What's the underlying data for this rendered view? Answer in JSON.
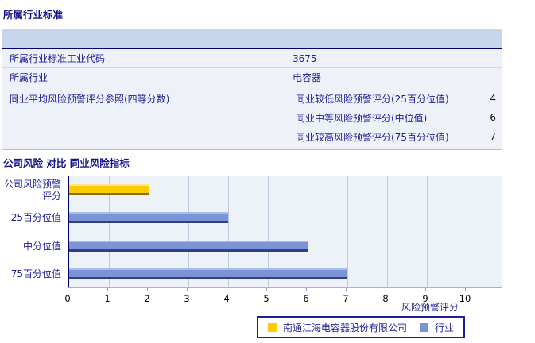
{
  "section1": {
    "title": "所属行业标准",
    "rows": [
      {
        "label": "所属行业标准工业代码",
        "value": "3675"
      },
      {
        "label": "所属行业",
        "value": "电容器"
      }
    ],
    "peer_row": {
      "label": "同业平均风险预警评分参照(四等分数)",
      "items": [
        {
          "label": "同业较低风险预警评分(25百分位值)",
          "value": "4"
        },
        {
          "label": "同业中等风险预警评分(中位值)",
          "value": "6"
        },
        {
          "label": "同业较高风险预警评分(75百分位值)",
          "value": "7"
        }
      ]
    }
  },
  "section2": {
    "title": "公司风险 对比 同业风险指标"
  },
  "chart_data": {
    "type": "bar",
    "orientation": "horizontal",
    "title": "公司风险 对比 同业风险指标",
    "categories": [
      "公司风险预警评分",
      "25百分位值",
      "中分位值",
      "75百分位值"
    ],
    "values": [
      2,
      4,
      6,
      7
    ],
    "series": [
      {
        "name": "南通江海电容器股份有限公司",
        "color": "#ffcc00",
        "bar_rows": [
          0
        ]
      },
      {
        "name": "行业",
        "color": "#7b94d8",
        "bar_rows": [
          1,
          2,
          3
        ]
      }
    ],
    "xlabel": "风险预警评分",
    "xlim": [
      0,
      10
    ],
    "xticks": [
      0,
      1,
      2,
      3,
      4,
      5,
      6,
      7,
      8,
      9,
      10
    ],
    "grid": "vertical",
    "legend_position": "bottom-right",
    "colors": {
      "plot_bg": "#edf1f8",
      "gridline": "#bcc9e4",
      "axis": "#000066",
      "header_band": "#c7d5ed",
      "row_bg": "#eef1f8",
      "text_navy": "#1f1f99"
    }
  }
}
